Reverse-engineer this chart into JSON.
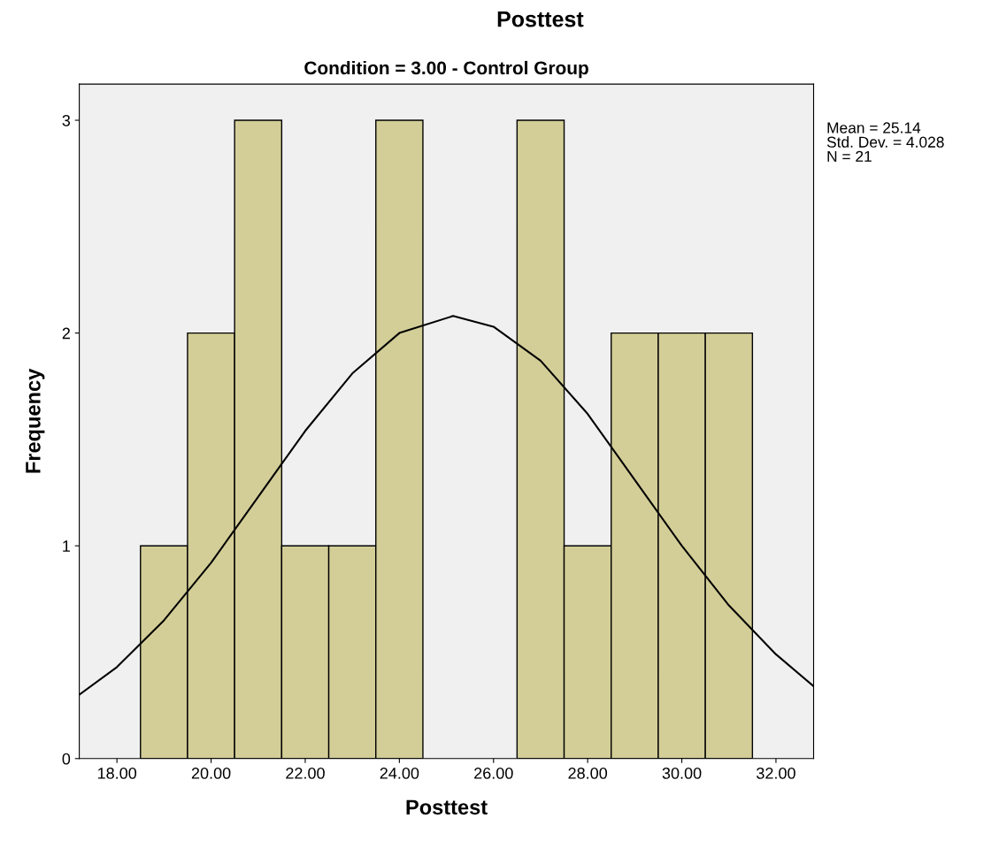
{
  "chart_data": {
    "type": "histogram",
    "title": "Posttest",
    "subtitle": "Condition = 3.00 - Control Group",
    "xlabel": "Posttest",
    "ylabel": "Frequency",
    "bins": [
      18.5,
      19.5,
      20.5,
      21.5,
      22.5,
      23.5,
      24.5,
      25.5,
      26.5,
      27.5,
      28.5,
      29.5,
      30.5,
      31.5
    ],
    "values": [
      1,
      2,
      3,
      1,
      1,
      3,
      0,
      0,
      3,
      1,
      2,
      2,
      2
    ],
    "color": "#d3ce97",
    "series": [
      {
        "type": "line",
        "color": "#000000",
        "x": [
          17.2,
          18,
          19,
          20,
          21,
          22,
          23,
          24,
          25.14,
          26,
          27,
          28,
          29,
          30,
          31,
          32,
          32.8
        ],
        "values": [
          0.3,
          0.43,
          0.65,
          0.92,
          1.23,
          1.54,
          1.81,
          2.0,
          2.08,
          2.03,
          1.87,
          1.62,
          1.31,
          1.0,
          0.72,
          0.49,
          0.34
        ]
      }
    ],
    "xlim": [
      17.2,
      32.8
    ],
    "xticks": [
      {
        "value": 18,
        "label": "18.00"
      },
      {
        "value": 20,
        "label": "20.00"
      },
      {
        "value": 22,
        "label": "22.00"
      },
      {
        "value": 24,
        "label": "24.00"
      },
      {
        "value": 26,
        "label": "26.00"
      },
      {
        "value": 28,
        "label": "28.00"
      },
      {
        "value": 30,
        "label": "30.00"
      },
      {
        "value": 32,
        "label": "32.00"
      }
    ],
    "ylim": [
      0,
      3.17
    ],
    "yticks": [
      0,
      1,
      2,
      3
    ],
    "annotations": [
      "Mean = 25.14",
      "Std. Dev. = 4.028",
      "N = 21"
    ]
  }
}
